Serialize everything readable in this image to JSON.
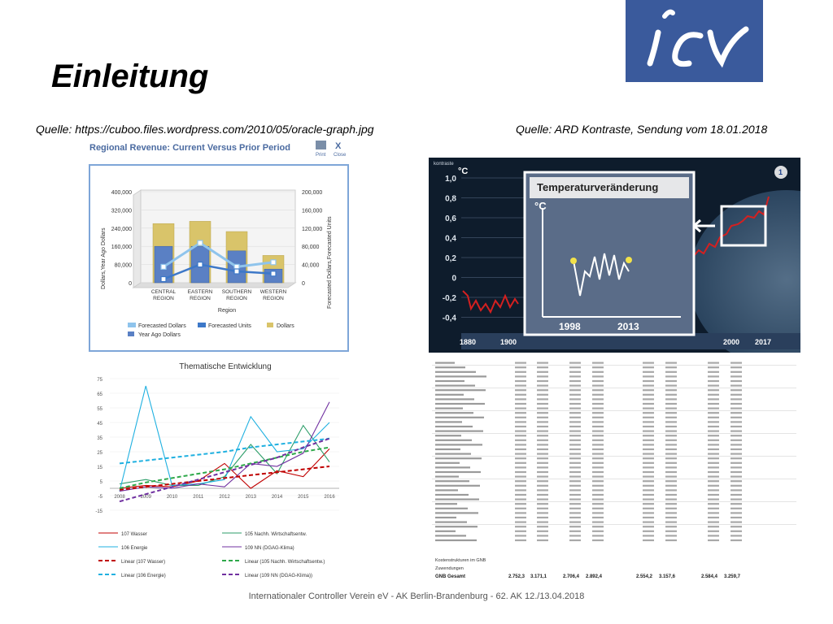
{
  "slide": {
    "title": "Einleitung",
    "source_left": "Quelle: https://cuboo.files.wordpress.com/2010/05/oracle-graph.jpg",
    "source_right": "Quelle: ARD Kontraste, Sendung vom 18.01.2018",
    "footer": "Internationaler Controller Verein eV - AK Berlin-Brandenburg - 62. AK 12./13.04.2018",
    "logo_text": "icv"
  },
  "colors": {
    "logo_bg": "#3a5a9c",
    "forecast_bar": "#d9c46a",
    "year_ago_bar": "#5a80c4",
    "forecast_line": "#8fc4ec",
    "units_line": "#3d78c8",
    "temp_red": "#d42020"
  },
  "revenue_chart": {
    "title": "Regional Revenue: Current Versus Prior Period",
    "print_label": "Print",
    "close_label": "Close",
    "y_left_label": "Dollars,Year Ago Dollars",
    "y_right_label": "Forecasted Dollars,Forecasted Units",
    "x_label": "Region",
    "y_left_ticks": [
      "400,000",
      "320,000",
      "240,000",
      "160,000",
      "80,000",
      "0"
    ],
    "y_right_ticks": [
      "200,000",
      "160,000",
      "120,000",
      "80,000",
      "40,000",
      "0"
    ],
    "categories": [
      [
        "CENTRAL",
        "REGION"
      ],
      [
        "EASTERN",
        "REGION"
      ],
      [
        "SOUTHERN",
        "REGION"
      ],
      [
        "WESTERN",
        "REGION"
      ]
    ],
    "legend": [
      "Forecasted Dollars",
      "Forecasted Units",
      "Dollars",
      "Year Ago Dollars"
    ],
    "dollars": [
      260000,
      270000,
      225000,
      120000
    ],
    "year_ago_dollars": [
      160000,
      160000,
      140000,
      60000
    ],
    "forecasted_dollars": [
      70000,
      175000,
      70000,
      90000
    ],
    "forecasted_units": [
      8000,
      40000,
      25000,
      20000
    ]
  },
  "temperature_chart": {
    "title": "Temperaturveränderung",
    "unit": "°C",
    "y_ticks": [
      "1,0",
      "0,8",
      "0,6",
      "0,4",
      "0,2",
      "0",
      "-0,2",
      "-0,4"
    ],
    "x_ticks": [
      "1880",
      "1900",
      "2000",
      "2017"
    ],
    "inset_x_ticks": [
      "1998",
      "2013"
    ],
    "inset_unit": "°C",
    "badge": "1",
    "corner_label": "kontraste"
  },
  "chart_data": {
    "type": "line",
    "title": "Thematische Entwicklung",
    "categories": [
      "2008",
      "2009",
      "2010",
      "2011",
      "2012",
      "2013",
      "2014",
      "2015",
      "2016"
    ],
    "y_ticks": [
      75,
      65,
      55,
      45,
      35,
      25,
      15,
      5,
      -5,
      -15
    ],
    "ylim": [
      -15,
      75
    ],
    "series": [
      {
        "name": "107 Wasser",
        "color": "#c00000",
        "dash": false,
        "values": [
          0,
          2,
          1,
          5,
          17,
          0,
          12,
          8,
          27
        ]
      },
      {
        "name": "105 Nachh. Wirtschaftsentw.",
        "color": "#2e9e6a",
        "dash": false,
        "values": [
          3,
          6,
          2,
          2,
          8,
          30,
          10,
          43,
          18
        ]
      },
      {
        "name": "106 Energie",
        "color": "#1fb0e0",
        "dash": false,
        "values": [
          -2,
          70,
          2,
          3,
          6,
          49,
          25,
          27,
          45
        ]
      },
      {
        "name": "109 NN (DGAG-Klima)",
        "color": "#7030a0",
        "dash": false,
        "values": [
          -2,
          1,
          0,
          3,
          1,
          17,
          15,
          24,
          59
        ]
      },
      {
        "name": "Linear (107 Wasser)",
        "color": "#c00000",
        "dash": true,
        "values": [
          -1,
          1,
          3,
          5,
          7,
          9,
          11,
          13,
          15
        ]
      },
      {
        "name": "Linear (105 Nachh. Wirtschaftsentw.)",
        "color": "#2ea84a",
        "dash": true,
        "values": [
          0,
          4,
          7,
          10,
          13,
          17,
          21,
          25,
          28
        ]
      },
      {
        "name": "Linear (106 Energie)",
        "color": "#1fb0e0",
        "dash": true,
        "values": [
          17,
          19,
          21,
          23,
          25,
          28,
          30,
          32,
          34
        ]
      },
      {
        "name": "Linear (109 NN (DGAG-Klima))",
        "color": "#7030a0",
        "dash": true,
        "values": [
          -9,
          -4,
          1,
          6,
          11,
          16,
          21,
          28,
          34
        ]
      }
    ],
    "legend_labels": [
      "107 Wasser",
      "105 Nachh. Wirtschaftsentw.",
      "106 Energie",
      "109 NN (DGAG-Klima)",
      "Linear (107 Wasser)",
      "Linear (105 Nachh. Wirtschaftsentw.)",
      "Linear (106 Energie)",
      "Linear (109 NN (DGAG-Klima))"
    ]
  },
  "table": {
    "footer_rows": [
      "Kostenstrukturen im GNB",
      "Zuwendungen",
      "GNB Gesamt"
    ],
    "gnb_values": [
      "2.752,3",
      "3.171,1",
      "2.706,4",
      "2.892,4",
      "2.554,2",
      "3.157,6",
      "2.584,4",
      "3.259,7"
    ]
  }
}
